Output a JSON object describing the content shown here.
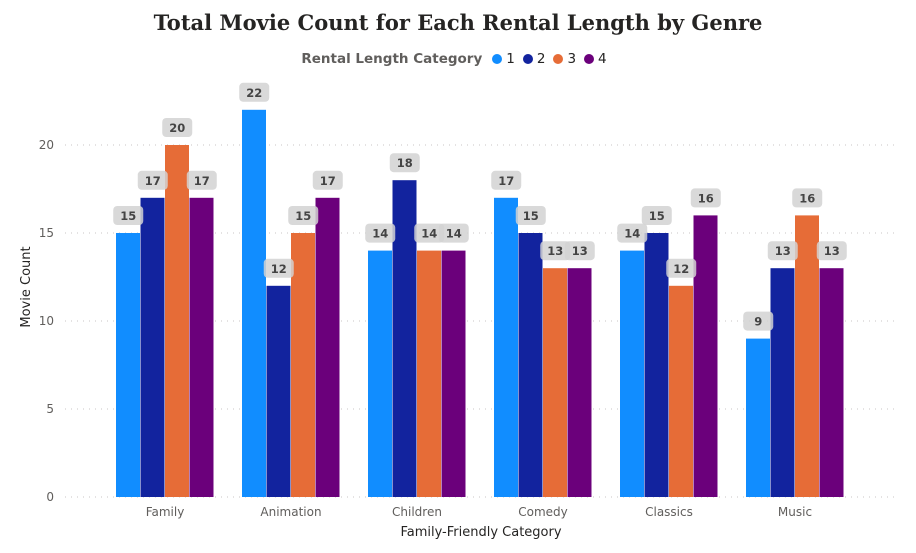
{
  "chart_data": {
    "type": "bar",
    "title": "Total Movie Count for Each Rental Length by Genre",
    "xlabel": "Family-Friendly Category",
    "ylabel": "Movie Count",
    "legend_title": "Rental Length Category",
    "legend_position": "top-center",
    "grid": true,
    "ylim": [
      0,
      22
    ],
    "yticks": [
      "0",
      "5",
      "10",
      "15",
      "20"
    ],
    "categories": [
      "Family",
      "Animation",
      "Children",
      "Comedy",
      "Classics",
      "Music"
    ],
    "series": [
      {
        "name": "1",
        "color": "#118dff",
        "values": [
          15,
          22,
          14,
          17,
          14,
          9
        ]
      },
      {
        "name": "2",
        "color": "#12239e",
        "values": [
          17,
          12,
          18,
          15,
          15,
          13
        ]
      },
      {
        "name": "3",
        "color": "#e66c37",
        "values": [
          20,
          15,
          14,
          13,
          12,
          16
        ]
      },
      {
        "name": "4",
        "color": "#6b007b",
        "values": [
          17,
          17,
          14,
          13,
          16,
          13
        ]
      }
    ]
  }
}
